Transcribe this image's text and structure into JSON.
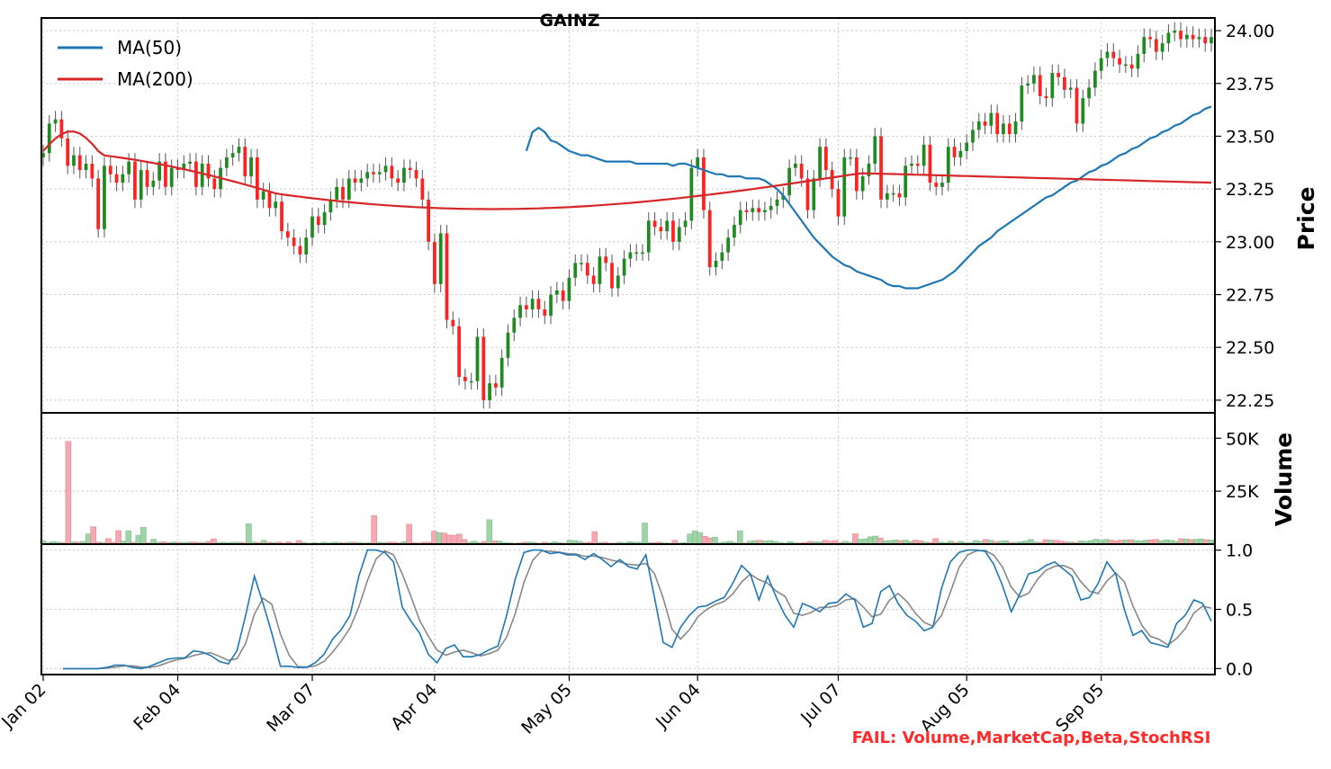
{
  "chart_data": {
    "type": "candlestick",
    "title": "GAINZ",
    "colors": {
      "up": "#1f8a1f",
      "down": "#ff2020",
      "ma50": "#1f77b4",
      "ma200": "#d62728",
      "vol_up": "#9fd4a8",
      "vol_down": "#f6a8b0",
      "stoch_k": "#1f77b4",
      "stoch_d": "#888888"
    },
    "x_axis": {
      "tick_labels": [
        "Jan 02",
        "Feb 04",
        "Mar 07",
        "Apr 04",
        "May 05",
        "Jun 04",
        "Jul 07",
        "Aug 05",
        "Sep 05"
      ],
      "rotation": 45
    },
    "price": {
      "ylabel": "Price",
      "ylim": [
        22.19,
        24.06
      ],
      "ticks": [
        22.25,
        22.5,
        22.75,
        23.0,
        23.25,
        23.5,
        23.75,
        24.0
      ],
      "tick_labels": [
        "22.25",
        "22.50",
        "22.75",
        "23.00",
        "23.25",
        "23.50",
        "23.75",
        "24.00"
      ],
      "legend": {
        "placement": "top-left",
        "entries": [
          "MA(50)",
          "MA(200)"
        ]
      },
      "close": [
        23.42,
        23.56,
        23.58,
        23.49,
        23.36,
        23.41,
        23.34,
        23.37,
        23.3,
        23.06,
        23.36,
        23.32,
        23.28,
        23.32,
        23.38,
        23.2,
        23.34,
        23.26,
        23.29,
        23.38,
        23.26,
        23.35,
        23.34,
        23.37,
        23.38,
        23.26,
        23.37,
        23.3,
        23.25,
        23.35,
        23.4,
        23.42,
        23.45,
        23.31,
        23.4,
        23.2,
        23.24,
        23.16,
        23.19,
        23.05,
        23.02,
        22.98,
        22.94,
        23.02,
        23.12,
        23.08,
        23.14,
        23.2,
        23.26,
        23.2,
        23.3,
        23.28,
        23.3,
        23.33,
        23.32,
        23.33,
        23.36,
        23.3,
        23.28,
        23.35,
        23.34,
        23.3,
        23.2,
        23.0,
        22.8,
        23.04,
        22.63,
        22.6,
        22.36,
        22.34,
        22.34,
        22.55,
        22.25,
        22.33,
        22.31,
        22.45,
        22.57,
        22.64,
        22.7,
        22.68,
        22.73,
        22.68,
        22.65,
        22.75,
        22.77,
        22.72,
        22.83,
        22.9,
        22.9,
        22.84,
        22.8,
        22.93,
        22.9,
        22.78,
        22.84,
        22.92,
        22.95,
        22.95,
        22.95,
        23.1,
        23.07,
        23.05,
        23.1,
        23.0,
        23.07,
        23.1,
        23.35,
        23.4,
        23.15,
        22.88,
        22.91,
        22.95,
        23.02,
        23.08,
        23.15,
        23.14,
        23.16,
        23.14,
        23.15,
        23.17,
        23.2,
        23.22,
        23.35,
        23.37,
        23.3,
        23.15,
        23.3,
        23.45,
        23.34,
        23.25,
        23.12,
        23.4,
        23.4,
        23.24,
        23.31,
        23.37,
        23.5,
        23.2,
        23.23,
        23.23,
        23.21,
        23.36,
        23.37,
        23.36,
        23.46,
        23.28,
        23.26,
        23.28,
        23.45,
        23.4,
        23.43,
        23.47,
        23.53,
        23.57,
        23.55,
        23.61,
        23.51,
        23.56,
        23.51,
        23.57,
        23.74,
        23.75,
        23.79,
        23.69,
        23.68,
        23.8,
        23.78,
        23.72,
        23.73,
        23.56,
        23.68,
        23.73,
        23.81,
        23.87,
        23.9,
        23.87,
        23.84,
        23.84,
        23.82,
        23.89,
        23.97,
        23.96,
        23.9,
        23.94,
        23.99,
        24.0,
        23.96,
        23.98,
        23.96,
        23.97,
        23.94,
        23.97
      ],
      "ma50": [
        23.43,
        23.52,
        23.54,
        23.52,
        23.48,
        23.47,
        23.45,
        23.43,
        23.42,
        23.41,
        23.41,
        23.4,
        23.39,
        23.38,
        23.38,
        23.38,
        23.38,
        23.38,
        23.37,
        23.37,
        23.37,
        23.37,
        23.37,
        23.37,
        23.36,
        23.37,
        23.37,
        23.36,
        23.35,
        23.34,
        23.33,
        23.32,
        23.32,
        23.31,
        23.31,
        23.31,
        23.3,
        23.3,
        23.3,
        23.29,
        23.27,
        23.25,
        23.22,
        23.18,
        23.14,
        23.1,
        23.06,
        23.02,
        22.99,
        22.96,
        22.93,
        22.91,
        22.89,
        22.88,
        22.86,
        22.85,
        22.84,
        22.83,
        22.82,
        22.8,
        22.79,
        22.79,
        22.78,
        22.78,
        22.78,
        22.79,
        22.8,
        22.81,
        22.82,
        22.84,
        22.86,
        22.89,
        22.92,
        22.95,
        22.98,
        23.0,
        23.02,
        23.05,
        23.07,
        23.09,
        23.11,
        23.13,
        23.15,
        23.17,
        23.19,
        23.21,
        23.22,
        23.24,
        23.26,
        23.28,
        23.29,
        23.31,
        23.33,
        23.34,
        23.36,
        23.37,
        23.39,
        23.41,
        23.42,
        23.44,
        23.45,
        23.47,
        23.49,
        23.5,
        23.52,
        23.53,
        23.55,
        23.56,
        23.58,
        23.6,
        23.61,
        23.63,
        23.64
      ],
      "ma200_start": 23.43,
      "ma200_end": 23.28
    },
    "volume": {
      "ylabel": "Volume",
      "ylim": [
        0,
        62000
      ],
      "ticks": [
        25000,
        50000
      ],
      "tick_labels": [
        "25K",
        "50K"
      ],
      "values": [
        1500,
        800,
        1200,
        900,
        700,
        48500,
        1100,
        1000,
        1300,
        4800,
        8200,
        1000,
        800,
        2600,
        900,
        6400,
        1400,
        6300,
        900,
        4200,
        8000,
        700,
        2300,
        900,
        1100,
        700,
        1000,
        900,
        800,
        900,
        1000,
        800,
        700,
        1300,
        2500,
        800,
        900,
        700,
        900,
        900,
        800,
        9600,
        1000,
        800,
        1800,
        900,
        700,
        1000,
        500,
        1100,
        500,
        1700,
        800,
        400,
        700,
        500,
        900,
        600,
        900,
        800,
        600,
        900,
        900,
        800,
        600,
        700,
        13500,
        900,
        700,
        900,
        900,
        600,
        1200,
        9400,
        700,
        500,
        900,
        900,
        6100,
        5400,
        5200,
        4300,
        4100,
        4700,
        2200,
        900,
        1400,
        700,
        1300,
        11500,
        1600,
        1400,
        800,
        600,
        400,
        600,
        900,
        1000,
        800,
        400,
        900,
        600,
        1100,
        700,
        500,
        1800,
        1700,
        1300,
        700,
        900,
        5900,
        700,
        900,
        500,
        500,
        900,
        600,
        1200,
        900,
        900,
        10000,
        700,
        800,
        900,
        600,
        500,
        1800,
        600,
        700,
        4800,
        6200,
        5500,
        3700,
        2900,
        3300,
        600,
        1000,
        1300,
        800,
        6200,
        600,
        1400,
        1700,
        1800,
        1500,
        1700,
        1300,
        800,
        500,
        1200,
        600,
        600,
        800,
        1300,
        1100,
        1100,
        1800,
        1400,
        1700,
        700,
        1300,
        800,
        4900,
        2300,
        2500,
        3500,
        3800,
        2900,
        1600,
        1700,
        2000,
        1700,
        1900,
        1300,
        1900,
        1600,
        1000,
        800,
        2600,
        900,
        700,
        1400,
        800,
        1300,
        800,
        700,
        1700,
        1400,
        2200,
        1800,
        1200,
        1400,
        1600,
        800,
        900,
        1200,
        1500,
        2200,
        1000,
        900,
        2100,
        1900,
        1800,
        1400,
        1100,
        1000,
        800,
        1500,
        1300,
        1700,
        2300,
        1800,
        2200,
        1900,
        1600,
        1900,
        2000,
        2100,
        1700,
        1500,
        1900,
        2100,
        2200,
        1500,
        2000,
        1800,
        1300,
        2600,
        2400,
        2200,
        2300,
        2400,
        2100,
        2000
      ]
    },
    "stoch": {
      "ylim": [
        -0.05,
        1.05
      ],
      "ticks": [
        0.0,
        0.5,
        1.0
      ],
      "tick_labels": [
        "0.0",
        "0.5",
        "1.0"
      ],
      "k": [
        0.0,
        0.0,
        0.0,
        0.0,
        0.0,
        0.01,
        0.03,
        0.03,
        0.01,
        0.0,
        0.02,
        0.05,
        0.08,
        0.09,
        0.09,
        0.15,
        0.14,
        0.11,
        0.06,
        0.04,
        0.15,
        0.45,
        0.78,
        0.55,
        0.3,
        0.02,
        0.02,
        0.01,
        0.01,
        0.05,
        0.12,
        0.25,
        0.33,
        0.45,
        0.78,
        1.0,
        1.0,
        0.98,
        0.9,
        0.52,
        0.4,
        0.3,
        0.12,
        0.05,
        0.17,
        0.2,
        0.1,
        0.1,
        0.12,
        0.16,
        0.19,
        0.45,
        0.76,
        0.98,
        1.0,
        1.0,
        0.97,
        0.98,
        0.96,
        0.96,
        0.92,
        0.97,
        0.92,
        0.86,
        0.92,
        0.86,
        0.84,
        0.96,
        0.6,
        0.22,
        0.18,
        0.35,
        0.45,
        0.52,
        0.53,
        0.57,
        0.6,
        0.72,
        0.87,
        0.8,
        0.58,
        0.78,
        0.6,
        0.45,
        0.35,
        0.55,
        0.52,
        0.48,
        0.55,
        0.56,
        0.63,
        0.58,
        0.35,
        0.38,
        0.65,
        0.7,
        0.55,
        0.45,
        0.4,
        0.32,
        0.35,
        0.68,
        0.9,
        0.98,
        1.0,
        1.0,
        0.99,
        0.88,
        0.7,
        0.48,
        0.63,
        0.8,
        0.82,
        0.87,
        0.9,
        0.84,
        0.78,
        0.58,
        0.6,
        0.72,
        0.9,
        0.8,
        0.5,
        0.28,
        0.32,
        0.22,
        0.2,
        0.18,
        0.38,
        0.45,
        0.58,
        0.55,
        0.4
      ]
    },
    "annotation": "FAIL: Volume,MarketCap,Beta,StochRSI"
  }
}
